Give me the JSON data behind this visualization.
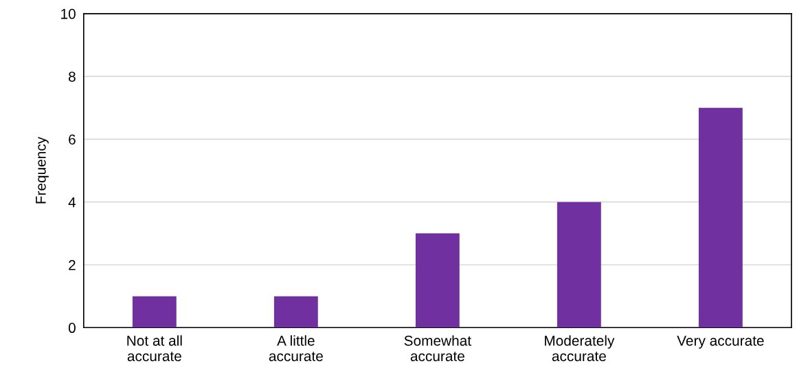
{
  "chart_data": {
    "type": "bar",
    "ylabel": "Frequency",
    "categories": [
      "Not at all\naccurate",
      "A little\naccurate",
      "Somewhat\naccurate",
      "Moderately\naccurate",
      "Very accurate"
    ],
    "values": [
      1,
      1,
      3,
      4,
      7
    ],
    "color": "#7030a0",
    "ylim": [
      0,
      10
    ],
    "yticks": [
      0,
      2,
      4,
      6,
      8,
      10
    ],
    "grid": "y"
  }
}
